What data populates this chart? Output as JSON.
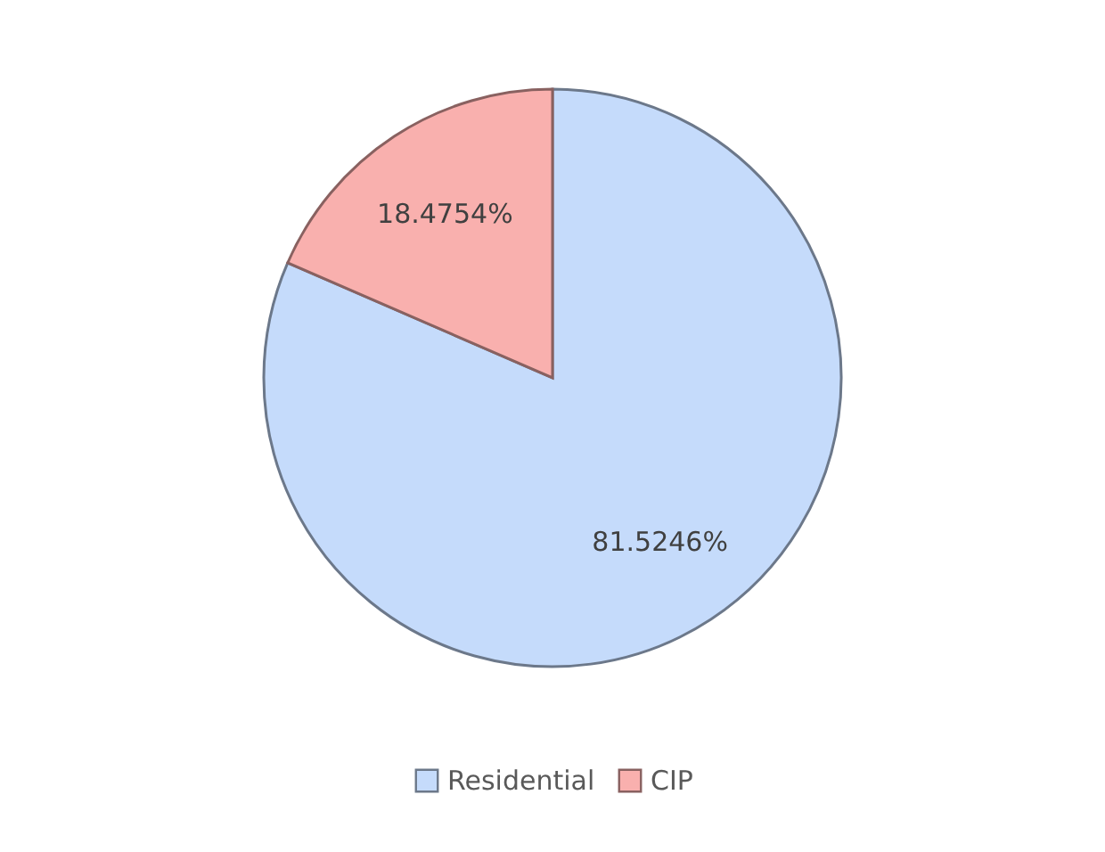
{
  "chart_data": {
    "type": "pie",
    "categories": [
      "Residential",
      "CIP"
    ],
    "values": [
      81.5246,
      18.4754
    ],
    "colors": [
      "#c5dbfb",
      "#f9b0ae"
    ],
    "value_labels": [
      "81.5246%",
      "18.4754%"
    ],
    "legend": "bottom"
  }
}
